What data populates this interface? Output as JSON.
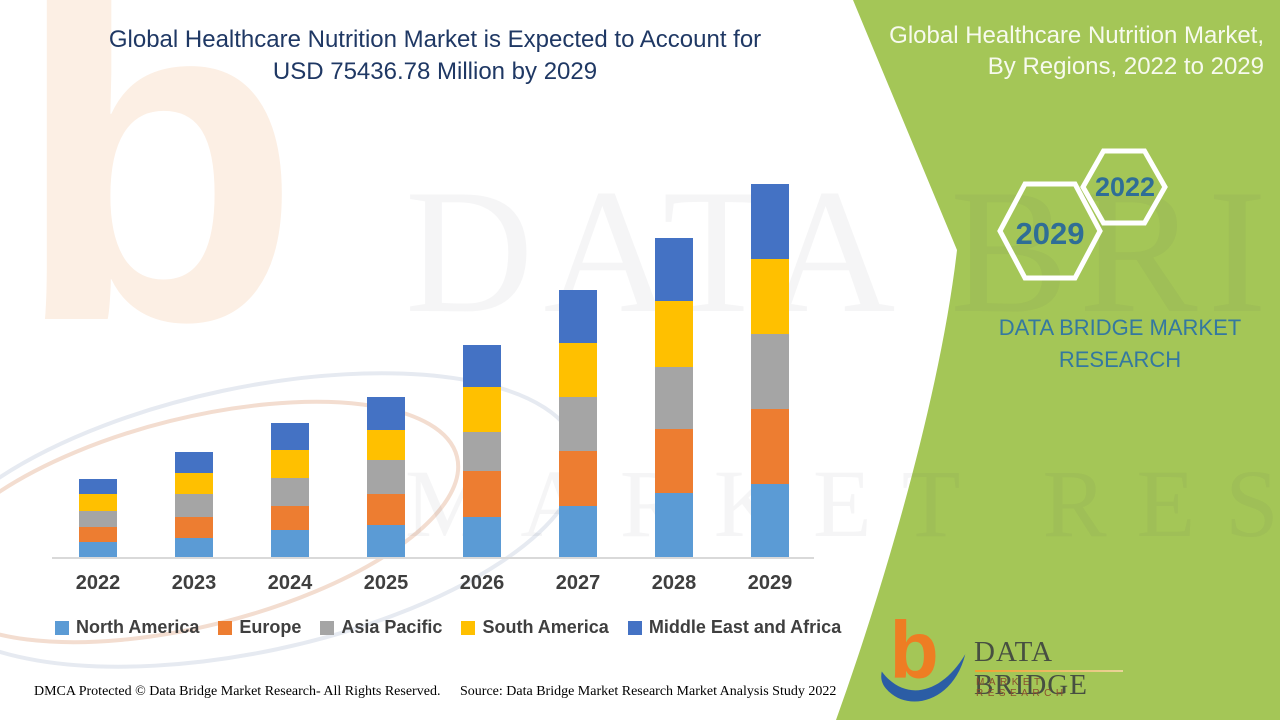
{
  "header": {
    "title_line1": "Global Healthcare Nutrition Market is Expected to Account for",
    "title_line2": "USD 75436.78 Million by 2029"
  },
  "side_panel": {
    "title_line1": "Global Healthcare Nutrition Market,",
    "title_line2": "By Regions, 2022 to 2029",
    "badge_small": "2022",
    "badge_large": "2029",
    "brand_line1": "DATA BRIDGE MARKET",
    "brand_line2": "RESEARCH",
    "panel_color": "#a4c657",
    "badge_text_color": "#2f6e96",
    "brand_text_color": "#3478a0"
  },
  "logo": {
    "mark": "b",
    "name": "DATA BRIDGE",
    "subtitle": "MARKET RESEARCH",
    "mark_orange": "#ee7d23",
    "mark_blue": "#2b5da5"
  },
  "watermark": {
    "big_letter": "b",
    "row1": "DATA BRIDGE",
    "row2": "MARKET RESEARCH"
  },
  "footer": {
    "dmca": "DMCA Protected © Data Bridge Market Research- All Rights Reserved.",
    "source": "Source: Data Bridge Market Research Market Analysis Study 2022"
  },
  "chart_data": {
    "type": "bar",
    "stacked": true,
    "title": "Global Healthcare Nutrition Market is Expected to Account for USD 75436.78 Million by 2029",
    "unit": "USD Million",
    "stated_total_2029": 75436.78,
    "categories": [
      "2022",
      "2023",
      "2024",
      "2025",
      "2026",
      "2027",
      "2028",
      "2029"
    ],
    "series": [
      {
        "name": "North America",
        "color": "#5B9BD5",
        "values": [
          3300,
          4050,
          5650,
          6650,
          8250,
          10400,
          13050,
          14950
        ]
      },
      {
        "name": "Europe",
        "color": "#ED7D31",
        "values": [
          2950,
          4250,
          4900,
          6250,
          9200,
          11250,
          12950,
          15100
        ]
      },
      {
        "name": "Asia Pacific",
        "color": "#A5A5A5",
        "values": [
          3300,
          4650,
          5600,
          6850,
          8050,
          10800,
          12550,
          15100
        ]
      },
      {
        "name": "South America",
        "color": "#FFC000",
        "values": [
          3450,
          4250,
          5600,
          6100,
          9050,
          10900,
          13300,
          15100
        ]
      },
      {
        "name": "Middle East and Africa",
        "color": "#4472C4",
        "values": [
          3000,
          4250,
          5400,
          6650,
          8400,
          10750,
          12550,
          15100
        ]
      }
    ],
    "ylim": [
      0,
      80000
    ],
    "grid": false,
    "legend_position": "bottom",
    "y_axis_labels_shown": false
  }
}
